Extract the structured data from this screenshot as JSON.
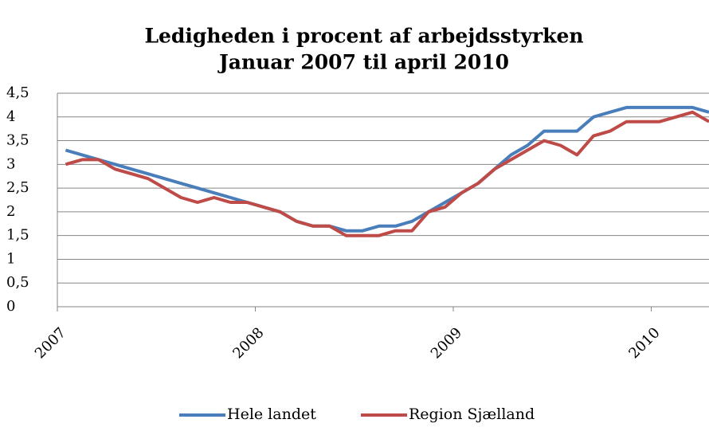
{
  "chart_data": {
    "type": "line",
    "title": "Ledigheden i procent af arbejdsstyrken",
    "subtitle": "Januar 2007 til april 2010",
    "categories": [
      "2007",
      null,
      null,
      null,
      null,
      null,
      null,
      null,
      null,
      null,
      null,
      null,
      "2008",
      null,
      null,
      null,
      null,
      null,
      null,
      null,
      null,
      null,
      null,
      null,
      "2009",
      null,
      null,
      null,
      null,
      null,
      null,
      null,
      null,
      null,
      null,
      null,
      "2010",
      null,
      null,
      null
    ],
    "series": [
      {
        "name": "Hele landet",
        "color": "#4a7ebb",
        "values": [
          3.3,
          3.2,
          3.1,
          3.0,
          2.9,
          2.8,
          2.7,
          2.6,
          2.5,
          2.4,
          2.3,
          2.2,
          2.1,
          2.0,
          1.8,
          1.7,
          1.7,
          1.6,
          1.6,
          1.7,
          1.7,
          1.8,
          2.0,
          2.2,
          2.4,
          2.6,
          2.9,
          3.2,
          3.4,
          3.7,
          3.7,
          3.7,
          4.0,
          4.1,
          4.2,
          4.2,
          4.2,
          4.2,
          4.2,
          4.1
        ]
      },
      {
        "name": "Region Sjælland",
        "color": "#be4b48",
        "values": [
          3.0,
          3.1,
          3.1,
          2.9,
          2.8,
          2.7,
          2.5,
          2.3,
          2.2,
          2.3,
          2.2,
          2.2,
          2.1,
          2.0,
          1.8,
          1.7,
          1.7,
          1.5,
          1.5,
          1.5,
          1.6,
          1.6,
          2.0,
          2.1,
          2.4,
          2.6,
          2.9,
          3.1,
          3.3,
          3.5,
          3.4,
          3.2,
          3.6,
          3.7,
          3.9,
          3.9,
          3.9,
          4.0,
          4.1,
          3.9
        ]
      }
    ],
    "ylim": [
      0,
      4.5
    ],
    "yticks": [
      0,
      {
        "value": 0.5,
        "label": "0,5"
      },
      1,
      {
        "value": 1.5,
        "label": "1,5"
      },
      2,
      {
        "value": 2.5,
        "label": "2,5"
      },
      3,
      {
        "value": 3.5,
        "label": "3,5"
      },
      4,
      {
        "value": 4.5,
        "label": "4,5"
      }
    ],
    "grid": true,
    "legend": "bottom"
  }
}
